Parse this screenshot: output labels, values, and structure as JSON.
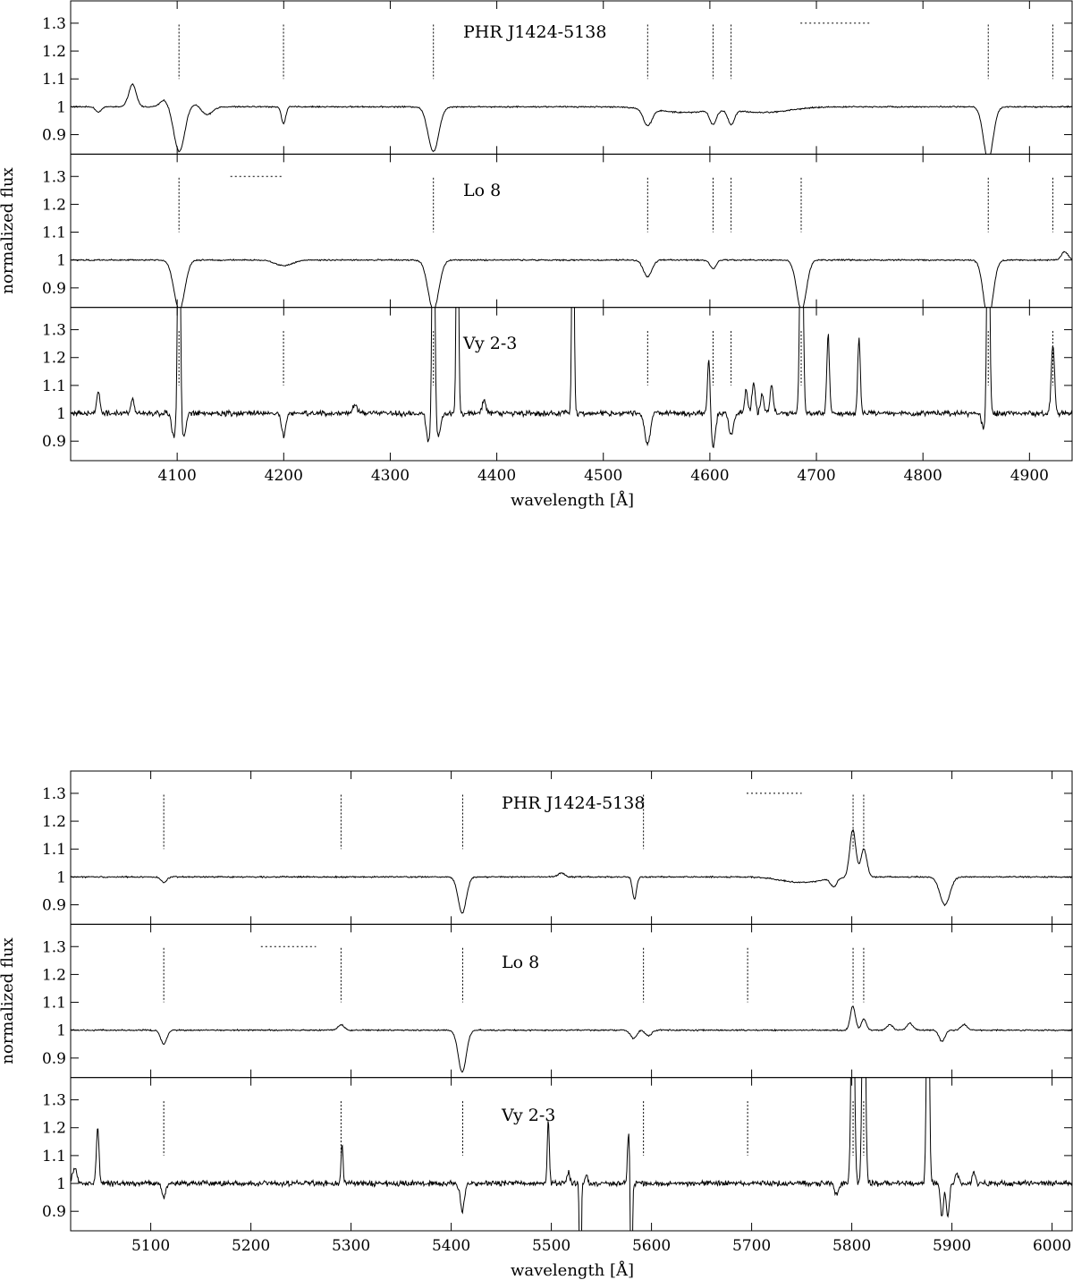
{
  "chart_data": [
    {
      "type": "line",
      "title": "",
      "xlabel": "wavelength [Å]",
      "ylabel": "normalized flux",
      "xlim": [
        4000,
        4940
      ],
      "xticks": [
        4100,
        4200,
        4300,
        4400,
        4500,
        4600,
        4700,
        4800,
        4900
      ],
      "panel_ylim": [
        0.83,
        1.38
      ],
      "yticks": [
        0.9,
        1,
        1.1,
        1.2,
        1.3
      ],
      "ytick_labels": [
        "0.9",
        "1",
        "1.1",
        "1.2",
        "1.3"
      ],
      "panels": [
        {
          "label": "PHR J1424-5138",
          "line_markers": [
            4101.7,
            4199.8,
            4340.5,
            4541.6,
            4603,
            4619.9,
            4861.3,
            4921.9
          ],
          "range_marker": [
            4685,
            4750
          ],
          "features": [
            {
              "center": 4102,
              "depth": -0.16,
              "width": 5
            },
            {
              "center": 4340.5,
              "depth": -0.16,
              "width": 5
            },
            {
              "center": 4861.3,
              "depth": -0.19,
              "width": 4.5
            },
            {
              "center": 4541.6,
              "depth": -0.06,
              "width": 4
            },
            {
              "center": 4603,
              "depth": -0.05,
              "width": 3
            },
            {
              "center": 4620,
              "depth": -0.05,
              "width": 3
            },
            {
              "center": 4199.8,
              "depth": -0.06,
              "width": 2
            },
            {
              "center": 4058,
              "depth": 0.08,
              "width": 3.5
            },
            {
              "center": 4088,
              "depth": 0.025,
              "width": 4
            },
            {
              "center": 4116,
              "depth": 0.01,
              "width": 6
            },
            {
              "center": 4128,
              "depth": -0.03,
              "width": 5
            },
            {
              "center": 4026,
              "depth": -0.02,
              "width": 2.5
            },
            {
              "center": 4650,
              "depth": -0.02,
              "width": 25
            },
            {
              "center": 4575,
              "depth": -0.02,
              "width": 25
            }
          ]
        },
        {
          "label": "Lo 8",
          "line_markers": [
            4101.7,
            4340.5,
            4541.6,
            4603,
            4619.9,
            4685.7,
            4861.3,
            4921.9
          ],
          "range_marker": [
            4150,
            4200
          ],
          "features": [
            {
              "center": 4102,
              "depth": -0.18,
              "width": 5
            },
            {
              "center": 4340.5,
              "depth": -0.18,
              "width": 5
            },
            {
              "center": 4686,
              "depth": -0.18,
              "width": 4.5
            },
            {
              "center": 4861.3,
              "depth": -0.21,
              "width": 4.5
            },
            {
              "center": 4541.6,
              "depth": -0.06,
              "width": 4
            },
            {
              "center": 4603,
              "depth": -0.03,
              "width": 3
            },
            {
              "center": 4200,
              "depth": -0.02,
              "width": 8
            },
            {
              "center": 4933,
              "depth": 0.03,
              "width": 3
            }
          ]
        },
        {
          "label": "Vy 2-3",
          "line_markers": [
            4101.7,
            4199.8,
            4340.5,
            4541.6,
            4603,
            4619.9,
            4685.7,
            4861.3,
            4921.9
          ],
          "range_marker": [],
          "features": [
            {
              "center": 4101.7,
              "depth": 1.0,
              "width": 1.2
            },
            {
              "center": 4340.5,
              "depth": 1.0,
              "width": 1.2
            },
            {
              "center": 4363,
              "depth": 1.0,
              "width": 1.0
            },
            {
              "center": 4471.5,
              "depth": 1.0,
              "width": 1.0
            },
            {
              "center": 4686,
              "depth": 1.0,
              "width": 1.4
            },
            {
              "center": 4861.3,
              "depth": 1.0,
              "width": 1.2
            },
            {
              "center": 4097,
              "depth": -0.09,
              "width": 2
            },
            {
              "center": 4106,
              "depth": -0.09,
              "width": 2
            },
            {
              "center": 4336,
              "depth": -0.1,
              "width": 2
            },
            {
              "center": 4345,
              "depth": -0.08,
              "width": 2
            },
            {
              "center": 4857,
              "depth": -0.05,
              "width": 2
            },
            {
              "center": 4200,
              "depth": -0.08,
              "width": 2
            },
            {
              "center": 4541.5,
              "depth": -0.11,
              "width": 2.5
            },
            {
              "center": 4603,
              "depth": -0.12,
              "width": 2
            },
            {
              "center": 4620,
              "depth": -0.08,
              "width": 2
            },
            {
              "center": 4599,
              "depth": 0.21,
              "width": 1.2
            },
            {
              "center": 4711,
              "depth": 0.28,
              "width": 1.2
            },
            {
              "center": 4740,
              "depth": 0.27,
              "width": 1.2
            },
            {
              "center": 4922,
              "depth": 0.25,
              "width": 1.5
            },
            {
              "center": 4634,
              "depth": 0.08,
              "width": 1.5
            },
            {
              "center": 4641,
              "depth": 0.11,
              "width": 1.5
            },
            {
              "center": 4649,
              "depth": 0.07,
              "width": 1.5
            },
            {
              "center": 4658,
              "depth": 0.1,
              "width": 1.5
            },
            {
              "center": 4026,
              "depth": 0.08,
              "width": 1.5
            },
            {
              "center": 4058,
              "depth": 0.06,
              "width": 1.5
            },
            {
              "center": 4388,
              "depth": 0.05,
              "width": 1.5
            },
            {
              "center": 4267,
              "depth": 0.03,
              "width": 2
            }
          ]
        }
      ]
    },
    {
      "type": "line",
      "title": "",
      "xlabel": "wavelength [Å]",
      "ylabel": "normalized flux",
      "xlim": [
        5020,
        6020
      ],
      "xticks": [
        5100,
        5200,
        5300,
        5400,
        5500,
        5600,
        5700,
        5800,
        5900,
        6000
      ],
      "panel_ylim": [
        0.83,
        1.38
      ],
      "yticks": [
        0.9,
        1,
        1.1,
        1.2,
        1.3
      ],
      "ytick_labels": [
        "0.9",
        "1",
        "1.1",
        "1.2",
        "1.3"
      ],
      "panels": [
        {
          "label": "PHR J1424-5138",
          "line_markers": [
            5113,
            5290,
            5411.5,
            5592,
            5801.3,
            5811.9
          ],
          "range_marker": [
            5695,
            5750
          ],
          "features": [
            {
              "center": 5411,
              "depth": -0.13,
              "width": 4
            },
            {
              "center": 5893,
              "depth": -0.1,
              "width": 5
            },
            {
              "center": 5583,
              "depth": -0.08,
              "width": 2
            },
            {
              "center": 5113,
              "depth": -0.02,
              "width": 3
            },
            {
              "center": 5801,
              "depth": 0.17,
              "width": 3
            },
            {
              "center": 5812,
              "depth": 0.1,
              "width": 3
            },
            {
              "center": 5510,
              "depth": 0.015,
              "width": 3
            },
            {
              "center": 5782,
              "depth": -0.03,
              "width": 3
            },
            {
              "center": 5750,
              "depth": -0.02,
              "width": 20
            }
          ]
        },
        {
          "label": "Lo 8",
          "line_markers": [
            5113,
            5290,
            5411.5,
            5592,
            5696,
            5801.3,
            5811.9
          ],
          "range_marker": [
            5210,
            5265
          ],
          "features": [
            {
              "center": 5113,
              "depth": -0.05,
              "width": 3
            },
            {
              "center": 5411,
              "depth": -0.15,
              "width": 4
            },
            {
              "center": 5582,
              "depth": -0.03,
              "width": 3
            },
            {
              "center": 5597,
              "depth": -0.02,
              "width": 3
            },
            {
              "center": 5890,
              "depth": -0.04,
              "width": 3
            },
            {
              "center": 5290,
              "depth": 0.02,
              "width": 3
            },
            {
              "center": 5801,
              "depth": 0.085,
              "width": 2.5
            },
            {
              "center": 5812,
              "depth": 0.04,
              "width": 2.5
            },
            {
              "center": 5838,
              "depth": 0.02,
              "width": 3
            },
            {
              "center": 5858,
              "depth": 0.025,
              "width": 3
            },
            {
              "center": 5912,
              "depth": 0.02,
              "width": 3
            }
          ]
        },
        {
          "label": "Vy 2-3",
          "line_markers": [
            5113,
            5290,
            5411.5,
            5592,
            5696,
            5801.3,
            5811.9
          ],
          "range_marker": [],
          "features": [
            {
              "center": 5047,
              "depth": 0.2,
              "width": 1.3
            },
            {
              "center": 5291,
              "depth": 0.14,
              "width": 1.0
            },
            {
              "center": 5497,
              "depth": 0.23,
              "width": 1.0
            },
            {
              "center": 5577,
              "depth": 0.18,
              "width": 1.0
            },
            {
              "center": 5801,
              "depth": 1.0,
              "width": 1.5
            },
            {
              "center": 5812,
              "depth": 1.0,
              "width": 1.5
            },
            {
              "center": 5876,
              "depth": 1.0,
              "width": 1.3
            },
            {
              "center": 5529,
              "depth": -0.55,
              "width": 0.8
            },
            {
              "center": 5580,
              "depth": -0.55,
              "width": 0.8
            },
            {
              "center": 5411,
              "depth": -0.1,
              "width": 2
            },
            {
              "center": 5113,
              "depth": -0.05,
              "width": 2
            },
            {
              "center": 5890,
              "depth": -0.12,
              "width": 1.5
            },
            {
              "center": 5896,
              "depth": -0.12,
              "width": 1.5
            },
            {
              "center": 5024,
              "depth": 0.06,
              "width": 2
            },
            {
              "center": 5517,
              "depth": 0.04,
              "width": 1.5
            },
            {
              "center": 5535,
              "depth": 0.03,
              "width": 1.5
            },
            {
              "center": 5905,
              "depth": 0.04,
              "width": 1.5
            },
            {
              "center": 5922,
              "depth": 0.04,
              "width": 1.5
            },
            {
              "center": 5785,
              "depth": -0.04,
              "width": 2
            }
          ]
        }
      ]
    }
  ]
}
